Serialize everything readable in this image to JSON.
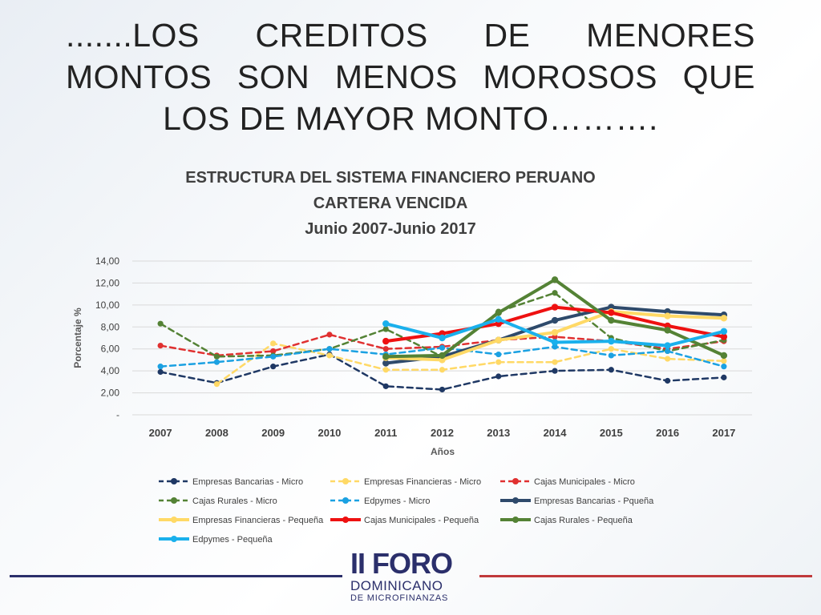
{
  "slide": {
    "heading": ".......LOS CREDITOS DE MENORES MONTOS SON MENOS MOROSOS QUE LOS DE MAYOR MONTO……….",
    "logo": {
      "line1": "II FORO",
      "line2": "DOMINICANO",
      "line3": "DE MICROFINANZAS"
    }
  },
  "chart_data": {
    "type": "line",
    "title": [
      "ESTRUCTURA DEL SISTEMA FINANCIERO  PERUANO",
      "CARTERA VENCIDA",
      "Junio 2007-Junio 2017"
    ],
    "xlabel": "Años",
    "ylabel": "Porcentaje %",
    "ylim": [
      0,
      14
    ],
    "yticks": [
      0,
      2,
      4,
      6,
      8,
      10,
      12,
      14
    ],
    "ytick_labels": [
      "-",
      "2,00",
      "4,00",
      "6,00",
      "8,00",
      "10,00",
      "12,00",
      "14,00"
    ],
    "categories": [
      "2007",
      "2008",
      "2009",
      "2010",
      "2011",
      "2012",
      "2013",
      "2014",
      "2015",
      "2016",
      "2017"
    ],
    "grid": true,
    "legend_position": "bottom",
    "series": [
      {
        "name": "Empresas Bancarias - Micro",
        "color": "#1f3864",
        "dashed": true,
        "width": 2.5,
        "values": [
          3.9,
          2.9,
          4.4,
          5.5,
          2.6,
          2.3,
          3.5,
          4.0,
          4.1,
          3.1,
          3.4
        ]
      },
      {
        "name": "Empresas Financieras - Micro",
        "color": "#ffd966",
        "dashed": true,
        "width": 2.5,
        "values": [
          null,
          2.8,
          6.5,
          5.4,
          4.1,
          4.1,
          4.8,
          4.8,
          6.0,
          5.1,
          4.9
        ]
      },
      {
        "name": "Cajas Municipales - Micro",
        "color": "#e03030",
        "dashed": true,
        "width": 2.5,
        "values": [
          6.3,
          5.4,
          5.8,
          7.3,
          6.0,
          6.2,
          6.8,
          7.1,
          6.7,
          6.0,
          6.7
        ]
      },
      {
        "name": "Cajas Rurales - Micro",
        "color": "#548235",
        "dashed": true,
        "width": 2.5,
        "values": [
          8.3,
          5.3,
          5.4,
          6.0,
          7.8,
          5.3,
          9.4,
          11.1,
          7.0,
          5.8,
          6.8
        ]
      },
      {
        "name": "Edpymes - Micro",
        "color": "#1ba1e2",
        "dashed": true,
        "width": 2.5,
        "values": [
          4.4,
          4.8,
          5.3,
          6.0,
          5.5,
          6.1,
          5.5,
          6.2,
          5.4,
          5.8,
          4.4
        ]
      },
      {
        "name": "Empresas Bancarias - Pqueña",
        "color": "#2e4a6b",
        "dashed": false,
        "width": 4,
        "values": [
          null,
          null,
          null,
          null,
          4.7,
          5.3,
          6.8,
          8.6,
          9.8,
          9.4,
          9.1
        ]
      },
      {
        "name": "Empresas Financieras - Pequeña",
        "color": "#ffd966",
        "dashed": false,
        "width": 4,
        "values": [
          null,
          null,
          null,
          null,
          5.2,
          5.0,
          6.8,
          7.5,
          9.4,
          9.0,
          8.8
        ]
      },
      {
        "name": "Cajas Municipales - Pequeña",
        "color": "#ee1111",
        "dashed": false,
        "width": 4,
        "values": [
          null,
          null,
          null,
          null,
          6.7,
          7.4,
          8.3,
          9.8,
          9.3,
          8.1,
          7.1
        ]
      },
      {
        "name": "Cajas Rurales - Pequeña",
        "color": "#548235",
        "dashed": false,
        "width": 4,
        "values": [
          null,
          null,
          null,
          null,
          5.3,
          5.4,
          9.3,
          12.3,
          8.6,
          7.7,
          5.4
        ]
      },
      {
        "name": "Edpymes - Pequeña",
        "color": "#1ab0ec",
        "dashed": false,
        "width": 4,
        "values": [
          null,
          null,
          null,
          null,
          8.3,
          7.0,
          8.7,
          6.6,
          6.7,
          6.3,
          7.6
        ]
      }
    ]
  }
}
